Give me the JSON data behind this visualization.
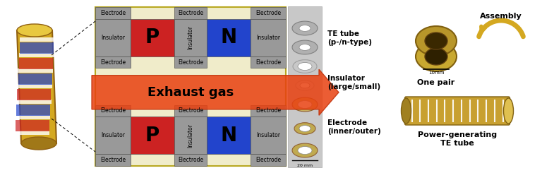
{
  "bg_color": "#ffffff",
  "exhaust_text": "Exhaust gas",
  "p_color": "#cc2222",
  "n_color": "#2244cc",
  "electrode_color": "#999999",
  "box_bg": "#f0ecca",
  "box_edge": "#b8a820",
  "labels_right": [
    "TE tube\n(p-/n-type)",
    "Insulator\n(large/small)",
    "Electrode\n(inner/outer)"
  ],
  "label_one_pair": "One pair",
  "label_assembly": "Assembly",
  "label_power": "Power-generating\nTE tube",
  "scale_bar_1": "10mm",
  "scale_bar_2": "20 mm"
}
